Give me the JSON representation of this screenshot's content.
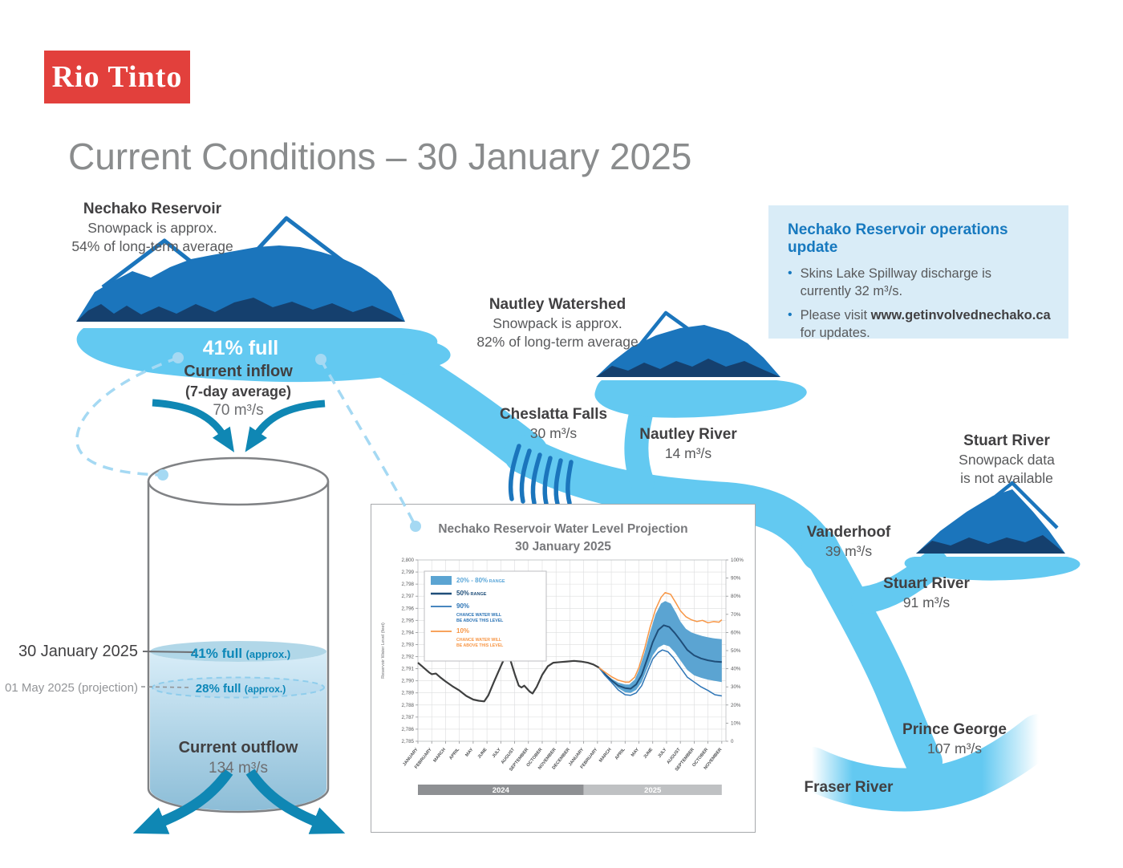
{
  "brand": {
    "logo_text": "Rio Tinto"
  },
  "page_title": "Current Conditions – 30 January 2025",
  "nechako": {
    "title": "Nechako Reservoir",
    "sub1": "Snowpack is approx.",
    "sub2": "54% of long-term average",
    "fullness": "41% full"
  },
  "inflow": {
    "label": "Current inflow",
    "sublabel": "(7-day average)",
    "value": "70 m³/s"
  },
  "cylinder": {
    "now_date": "30 January 2025",
    "now_level": "41% full",
    "now_note": "(approx.)",
    "proj_date": "01 May 2025 (projection)",
    "proj_level": "28% full",
    "proj_note": "(approx.)",
    "outflow_label": "Current outflow",
    "outflow_value": "134 m³/s"
  },
  "cheslatta": {
    "label": "Cheslatta Falls",
    "value": "30 m³/s"
  },
  "nautley": {
    "title": "Nautley Watershed",
    "sub1": "Snowpack is approx.",
    "sub2": "82% of long-term average",
    "river_label": "Nautley River",
    "river_value": "14 m³/s"
  },
  "stuart": {
    "title": "Stuart River",
    "sub1": "Snowpack data",
    "sub2": "is not available",
    "river_label": "Stuart River",
    "river_value": "91 m³/s"
  },
  "vanderhoof": {
    "label": "Vanderhoof",
    "value": "39 m³/s"
  },
  "prince_george": {
    "label": "Prince George",
    "value": "107 m³/s"
  },
  "fraser": {
    "label": "Fraser River"
  },
  "ops_update": {
    "title": "Nechako Reservoir operations update",
    "bullet1_lines": [
      "Skins Lake Spillway discharge is",
      "currently 32 m³/s."
    ],
    "bullet2_pre": "Please visit ",
    "bullet2_link": "www.getinvolvednechako.ca",
    "bullet2_line2": "for updates."
  },
  "chart_data": {
    "type": "line",
    "title_line1": "Nechako Reservoir Water Level Projection",
    "title_line2": "30 January 2025",
    "ylabel": "Reservoir Water Level (feet)",
    "ylim": [
      2785,
      2800
    ],
    "y2lim_percent": [
      0,
      100
    ],
    "grid": true,
    "legend_position": "top-left",
    "x_labels": [
      "JANUARY",
      "FEBRUARY",
      "MARCH",
      "APRIL",
      "MAY",
      "JUNE",
      "JULY",
      "AUGUST",
      "SEPTEMBER",
      "OCTOBER",
      "NOVEMBER",
      "DECEMBER",
      "JANUARY",
      "FEBRUARY",
      "MARCH",
      "APRIL",
      "MAY",
      "JUNE",
      "JULY",
      "AUGUST",
      "SEPTEMBER",
      "OCTOBER",
      "NOVEMBER"
    ],
    "year_bars": [
      {
        "label": "2024",
        "from": 0,
        "to": 12,
        "color": "#8E9093"
      },
      {
        "label": "2025",
        "from": 12,
        "to": 22,
        "color": "#BFC1C3"
      }
    ],
    "legend": [
      {
        "type": "band",
        "color": "#5BA4D2",
        "label": "20% - 80%",
        "sublabel": "RANGE",
        "text_color": "#5BA7D9"
      },
      {
        "type": "line",
        "color": "#1F4E79",
        "label": "50%",
        "sublabel": "RANGE",
        "text_color": "#1F4E79"
      },
      {
        "type": "line",
        "color": "#2E75B6",
        "label": "90%",
        "sublines": [
          "CHANCE WATER WILL",
          "BE ABOVE THIS LEVEL"
        ],
        "text_color": "#2E75B6"
      },
      {
        "type": "line",
        "color": "#F79646",
        "label": "10%",
        "sublines": [
          "CHANCE WATER WILL",
          "BE ABOVE THIS LEVEL"
        ],
        "text_color": "#F79646"
      }
    ],
    "series": [
      {
        "name": "historical",
        "color": "#3F4040",
        "width": 2.2,
        "points": [
          [
            0,
            2791.5
          ],
          [
            0.4,
            2791.1
          ],
          [
            0.8,
            2790.7
          ],
          [
            1.0,
            2790.55
          ],
          [
            1.3,
            2790.6
          ],
          [
            1.6,
            2790.3
          ],
          [
            2,
            2789.95
          ],
          [
            2.5,
            2789.55
          ],
          [
            3,
            2789.2
          ],
          [
            3.5,
            2788.75
          ],
          [
            4,
            2788.45
          ],
          [
            4.4,
            2788.35
          ],
          [
            4.8,
            2788.3
          ],
          [
            5.1,
            2788.8
          ],
          [
            5.5,
            2789.9
          ],
          [
            6,
            2791.2
          ],
          [
            6.4,
            2792.2
          ],
          [
            6.6,
            2792.05
          ],
          [
            7,
            2790.6
          ],
          [
            7.3,
            2789.6
          ],
          [
            7.5,
            2789.45
          ],
          [
            7.7,
            2789.6
          ],
          [
            8.1,
            2789.1
          ],
          [
            8.3,
            2788.95
          ],
          [
            8.6,
            2789.5
          ],
          [
            9,
            2790.5
          ],
          [
            9.4,
            2791.2
          ],
          [
            9.8,
            2791.5
          ],
          [
            10.3,
            2791.55
          ],
          [
            10.8,
            2791.6
          ],
          [
            11.3,
            2791.65
          ],
          [
            11.8,
            2791.6
          ],
          [
            12.3,
            2791.5
          ],
          [
            12.7,
            2791.35
          ],
          [
            13.1,
            2791.1
          ]
        ]
      },
      {
        "name": "median_50",
        "color": "#1F4E79",
        "width": 2.0,
        "points": [
          [
            13.1,
            2791.1
          ],
          [
            13.5,
            2790.6
          ],
          [
            14,
            2790.05
          ],
          [
            14.5,
            2789.6
          ],
          [
            15,
            2789.4
          ],
          [
            15.4,
            2789.35
          ],
          [
            15.8,
            2789.7
          ],
          [
            16.2,
            2790.5
          ],
          [
            16.6,
            2791.8
          ],
          [
            17,
            2793.2
          ],
          [
            17.4,
            2794.2
          ],
          [
            17.8,
            2794.6
          ],
          [
            18.2,
            2794.45
          ],
          [
            18.6,
            2793.95
          ],
          [
            19,
            2793.35
          ],
          [
            19.5,
            2792.55
          ],
          [
            20,
            2792.1
          ],
          [
            20.5,
            2791.85
          ],
          [
            21,
            2791.7
          ],
          [
            21.5,
            2791.6
          ],
          [
            22,
            2791.55
          ]
        ]
      },
      {
        "name": "p90_chance_above",
        "color": "#2E75B6",
        "width": 1.5,
        "points": [
          [
            13.1,
            2791.1
          ],
          [
            13.5,
            2790.5
          ],
          [
            14,
            2789.9
          ],
          [
            14.5,
            2789.25
          ],
          [
            15,
            2788.85
          ],
          [
            15.4,
            2788.8
          ],
          [
            15.8,
            2789.0
          ],
          [
            16.2,
            2789.6
          ],
          [
            16.6,
            2790.7
          ],
          [
            17,
            2791.8
          ],
          [
            17.4,
            2792.35
          ],
          [
            17.7,
            2792.55
          ],
          [
            18.1,
            2792.4
          ],
          [
            18.5,
            2791.9
          ],
          [
            19,
            2791.1
          ],
          [
            19.5,
            2790.3
          ],
          [
            20,
            2789.9
          ],
          [
            20.5,
            2789.5
          ],
          [
            21,
            2789.2
          ],
          [
            21.5,
            2788.85
          ],
          [
            22,
            2788.75
          ]
        ]
      },
      {
        "name": "p10_chance_above",
        "color": "#F79646",
        "width": 1.5,
        "points": [
          [
            13.1,
            2791.1
          ],
          [
            13.5,
            2790.75
          ],
          [
            14,
            2790.35
          ],
          [
            14.5,
            2790.05
          ],
          [
            15,
            2789.9
          ],
          [
            15.3,
            2789.9
          ],
          [
            15.7,
            2790.3
          ],
          [
            16,
            2791.1
          ],
          [
            16.4,
            2792.6
          ],
          [
            16.8,
            2794.4
          ],
          [
            17.2,
            2795.9
          ],
          [
            17.6,
            2796.9
          ],
          [
            17.9,
            2797.3
          ],
          [
            18.3,
            2797.15
          ],
          [
            18.7,
            2796.4
          ],
          [
            19,
            2795.8
          ],
          [
            19.4,
            2795.3
          ],
          [
            19.8,
            2795.05
          ],
          [
            20.2,
            2794.9
          ],
          [
            20.6,
            2795.0
          ],
          [
            21,
            2794.8
          ],
          [
            21.4,
            2794.9
          ],
          [
            21.8,
            2794.85
          ],
          [
            22,
            2795.05
          ]
        ]
      }
    ],
    "band": {
      "name": "range_20_80",
      "color": "#5BA4D2",
      "lower": [
        [
          13.1,
          2791.1
        ],
        [
          13.5,
          2790.55
        ],
        [
          14,
          2789.95
        ],
        [
          14.5,
          2789.4
        ],
        [
          15,
          2789.05
        ],
        [
          15.4,
          2789.0
        ],
        [
          15.8,
          2789.25
        ],
        [
          16.2,
          2789.9
        ],
        [
          16.6,
          2791.0
        ],
        [
          17,
          2792.1
        ],
        [
          17.4,
          2792.75
        ],
        [
          17.8,
          2793.0
        ],
        [
          18.2,
          2792.85
        ],
        [
          18.6,
          2792.35
        ],
        [
          19,
          2791.7
        ],
        [
          19.5,
          2790.9
        ],
        [
          20,
          2790.45
        ],
        [
          20.5,
          2790.25
        ],
        [
          21,
          2790.1
        ],
        [
          21.5,
          2790.0
        ],
        [
          22,
          2789.9
        ]
      ],
      "upper": [
        [
          13.1,
          2791.1
        ],
        [
          13.5,
          2790.65
        ],
        [
          14,
          2790.2
        ],
        [
          14.5,
          2789.85
        ],
        [
          15,
          2789.7
        ],
        [
          15.3,
          2789.7
        ],
        [
          15.7,
          2790.1
        ],
        [
          16,
          2790.9
        ],
        [
          16.4,
          2792.3
        ],
        [
          16.8,
          2794.0
        ],
        [
          17.2,
          2795.5
        ],
        [
          17.6,
          2796.4
        ],
        [
          17.9,
          2796.6
        ],
        [
          18.3,
          2796.4
        ],
        [
          18.7,
          2795.6
        ],
        [
          19,
          2794.9
        ],
        [
          19.4,
          2794.3
        ],
        [
          19.8,
          2794.0
        ],
        [
          20.2,
          2793.85
        ],
        [
          20.6,
          2793.7
        ],
        [
          21,
          2793.6
        ],
        [
          21.5,
          2793.5
        ],
        [
          22,
          2793.45
        ]
      ]
    }
  }
}
